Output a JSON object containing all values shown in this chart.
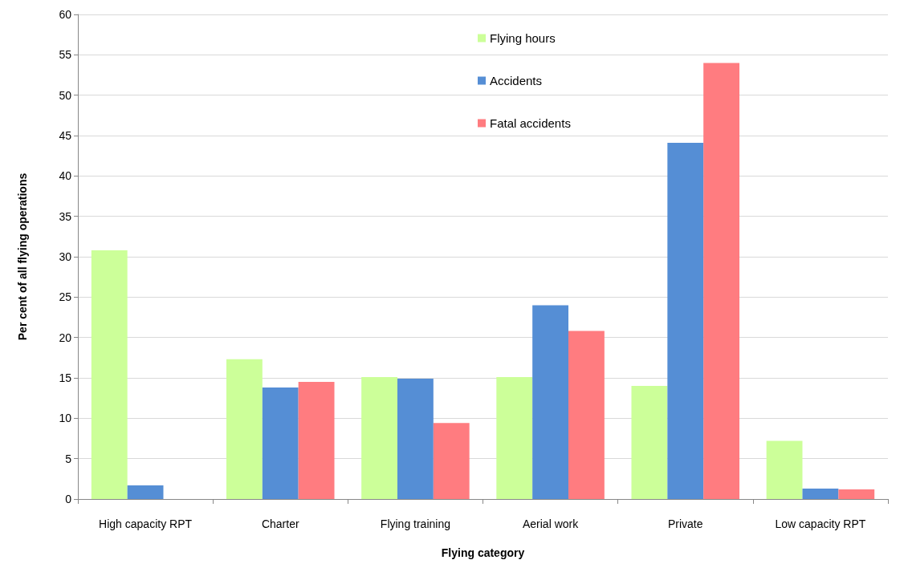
{
  "chart_data": {
    "type": "bar",
    "xlabel": "Flying category",
    "ylabel": "Per cent of all flying operations",
    "categories": [
      "High capacity RPT",
      "Charter",
      "Flying training",
      "Aerial work",
      "Private",
      "Low capacity RPT"
    ],
    "series": [
      {
        "name": "Flying hours",
        "color": "#ccff99",
        "values": [
          30.8,
          17.3,
          15.1,
          15.1,
          14.0,
          7.2
        ]
      },
      {
        "name": "Accidents",
        "color": "#558ed5",
        "values": [
          1.7,
          13.8,
          14.9,
          24.0,
          44.1,
          1.3
        ]
      },
      {
        "name": "Fatal accidents",
        "color": "#ff7c80",
        "values": [
          0,
          14.5,
          9.4,
          20.8,
          54.0,
          1.2
        ]
      }
    ],
    "ylim": [
      0,
      60
    ],
    "yticks": [
      0,
      5,
      10,
      15,
      20,
      25,
      30,
      35,
      40,
      45,
      50,
      55,
      60
    ],
    "grid": "y",
    "legend": "top"
  }
}
